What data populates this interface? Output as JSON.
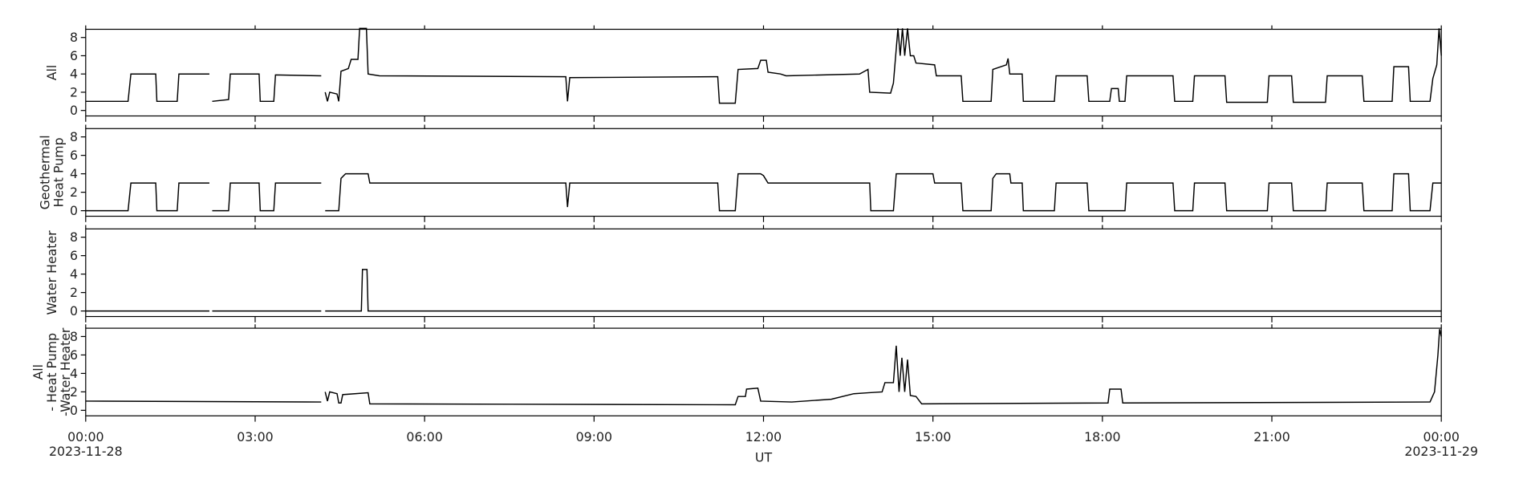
{
  "chart_data": [
    {
      "type": "line",
      "ylabel": [
        "All"
      ],
      "color": "#000000",
      "ylim": [
        -0.6,
        8.9
      ],
      "yticks": [
        0,
        2,
        4,
        6,
        8
      ],
      "x": [
        0,
        0.75,
        0.8,
        1.24,
        1.26,
        1.62,
        1.65,
        2.19,
        2.2,
        2.24,
        2.53,
        2.56,
        3.07,
        3.09,
        3.33,
        3.36,
        4.17,
        4.2,
        4.24,
        4.28,
        4.32,
        4.45,
        4.48,
        4.52,
        4.65,
        4.7,
        4.82,
        4.85,
        4.97,
        5.0,
        5.2,
        8.5,
        8.53,
        8.57,
        11.19,
        11.22,
        11.5,
        11.55,
        11.9,
        11.95,
        12.05,
        12.08,
        12.3,
        12.4,
        13.7,
        13.85,
        13.88,
        14.25,
        14.3,
        14.38,
        14.42,
        14.46,
        14.5,
        14.55,
        14.6,
        14.66,
        14.7,
        15.03,
        15.06,
        15.5,
        15.53,
        16.03,
        16.06,
        16.3,
        16.33,
        16.36,
        16.58,
        16.6,
        17.15,
        17.18,
        17.73,
        17.76,
        18.13,
        18.16,
        18.28,
        18.3,
        18.4,
        18.43,
        19.25,
        19.28,
        19.6,
        19.63,
        20.17,
        20.2,
        20.92,
        20.95,
        21.35,
        21.38,
        21.95,
        21.98,
        22.6,
        22.63,
        23.13,
        23.16,
        23.42,
        23.45,
        23.8,
        23.85,
        23.92,
        23.96,
        24
      ],
      "values": [
        1,
        1,
        4,
        4,
        1,
        1,
        4,
        4,
        null,
        1,
        1.2,
        4,
        4,
        1,
        1,
        3.9,
        3.8,
        null,
        2,
        1,
        2,
        1.8,
        1,
        4.3,
        4.6,
        5.6,
        5.6,
        9,
        9,
        4,
        3.8,
        3.7,
        1,
        3.6,
        3.7,
        0.8,
        0.8,
        4.5,
        4.6,
        5.5,
        5.5,
        4.2,
        4,
        3.8,
        4,
        4.5,
        2,
        1.9,
        3,
        9,
        6,
        9,
        6,
        9,
        6,
        6,
        5.2,
        5,
        3.8,
        3.8,
        1,
        1,
        4.5,
        5,
        5.7,
        4,
        4,
        1,
        1,
        3.8,
        3.8,
        1,
        1,
        2.4,
        2.4,
        1,
        1,
        3.8,
        3.8,
        1,
        1,
        3.8,
        3.8,
        0.9,
        0.9,
        3.8,
        3.8,
        0.9,
        0.9,
        3.8,
        3.8,
        1,
        1,
        4.8,
        4.8,
        1,
        1,
        3.5,
        5,
        9,
        6
      ]
    },
    {
      "type": "line",
      "ylabel": [
        "Geothermal",
        "Heat Pump"
      ],
      "color": "#000000",
      "ylim": [
        -0.6,
        8.9
      ],
      "yticks": [
        0,
        2,
        4,
        6,
        8
      ],
      "x": [
        0,
        0.75,
        0.8,
        1.24,
        1.26,
        1.62,
        1.65,
        2.19,
        2.2,
        2.24,
        2.53,
        2.56,
        3.07,
        3.09,
        3.33,
        3.36,
        4.17,
        4.2,
        4.24,
        4.48,
        4.52,
        4.6,
        5.0,
        5.03,
        8.5,
        8.53,
        8.57,
        11.19,
        11.22,
        11.5,
        11.55,
        11.95,
        12.0,
        12.08,
        13.88,
        13.9,
        14.3,
        14.35,
        15.0,
        15.03,
        15.5,
        15.53,
        16.03,
        16.06,
        16.12,
        16.36,
        16.38,
        16.58,
        16.6,
        17.15,
        17.18,
        17.73,
        17.76,
        18.4,
        18.43,
        19.25,
        19.28,
        19.6,
        19.63,
        20.17,
        20.2,
        20.92,
        20.95,
        21.35,
        21.38,
        21.95,
        21.98,
        22.6,
        22.63,
        23.13,
        23.16,
        23.42,
        23.45,
        23.8,
        23.85,
        24
      ],
      "values": [
        0,
        0,
        3,
        3,
        0,
        0,
        3,
        3,
        null,
        0,
        0,
        3,
        3,
        0,
        0,
        3,
        3,
        null,
        0,
        0,
        3.5,
        4,
        4,
        3,
        3,
        0.4,
        3,
        3,
        0,
        0,
        4,
        4,
        3.8,
        3,
        3,
        0,
        0,
        4,
        4,
        3,
        3,
        0,
        0,
        3.5,
        4,
        4,
        3,
        3,
        0,
        0,
        3,
        3,
        0,
        0,
        3,
        3,
        0,
        0,
        3,
        3,
        0,
        0,
        3,
        3,
        0,
        0,
        3,
        3,
        0,
        0,
        4,
        4,
        0,
        0,
        3,
        3
      ]
    },
    {
      "type": "line",
      "ylabel": [
        "Water Heater"
      ],
      "color": "#000000",
      "ylim": [
        -0.6,
        8.9
      ],
      "yticks": [
        0,
        2,
        4,
        6,
        8
      ],
      "x": [
        0,
        2.19,
        2.2,
        2.24,
        4.17,
        4.2,
        4.24,
        4.88,
        4.9,
        4.98,
        5.0,
        24
      ],
      "values": [
        0,
        0,
        null,
        0,
        0,
        null,
        0,
        0,
        4.5,
        4.5,
        0,
        0
      ]
    },
    {
      "type": "line",
      "ylabel": [
        "All",
        "- Heat Pump",
        "-Water Heater"
      ],
      "color": "#000000",
      "ylim": [
        -0.6,
        8.9
      ],
      "yticks": [
        0,
        2,
        4,
        6,
        8
      ],
      "x": [
        0,
        4.17,
        4.2,
        4.24,
        4.28,
        4.32,
        4.45,
        4.48,
        4.52,
        4.55,
        5.0,
        5.03,
        11.5,
        11.55,
        11.68,
        11.7,
        11.9,
        11.95,
        12.5,
        13.2,
        13.6,
        13.85,
        14.1,
        14.15,
        14.3,
        14.35,
        14.4,
        14.45,
        14.5,
        14.55,
        14.6,
        14.7,
        14.8,
        18.1,
        18.13,
        18.33,
        18.36,
        23.8,
        23.88,
        23.94,
        23.97,
        24
      ],
      "values": [
        1,
        0.9,
        null,
        2,
        1,
        2,
        1.8,
        0.8,
        0.8,
        1.7,
        1.9,
        0.7,
        0.6,
        1.5,
        1.5,
        2.3,
        2.4,
        1,
        0.9,
        1.2,
        1.8,
        1.9,
        2,
        3,
        3,
        7,
        2,
        5.7,
        2,
        5.5,
        1.6,
        1.5,
        0.7,
        0.8,
        2.3,
        2.3,
        0.8,
        0.9,
        2,
        6,
        8.8,
        8
      ],
      "xlim": [
        0,
        24
      ],
      "xlabel": "UT",
      "xticks": [
        {
          "value": 0,
          "label": "00:00"
        },
        {
          "value": 3,
          "label": "03:00"
        },
        {
          "value": 6,
          "label": "06:00"
        },
        {
          "value": 9,
          "label": "09:00"
        },
        {
          "value": 12,
          "label": "12:00"
        },
        {
          "value": 15,
          "label": "15:00"
        },
        {
          "value": 18,
          "label": "18:00"
        },
        {
          "value": 21,
          "label": "21:00"
        },
        {
          "value": 24,
          "label": "00:00"
        }
      ],
      "xdates": [
        {
          "value": 0,
          "label": "2023-11-28"
        },
        {
          "value": 24,
          "label": "2023-11-29"
        }
      ]
    }
  ]
}
